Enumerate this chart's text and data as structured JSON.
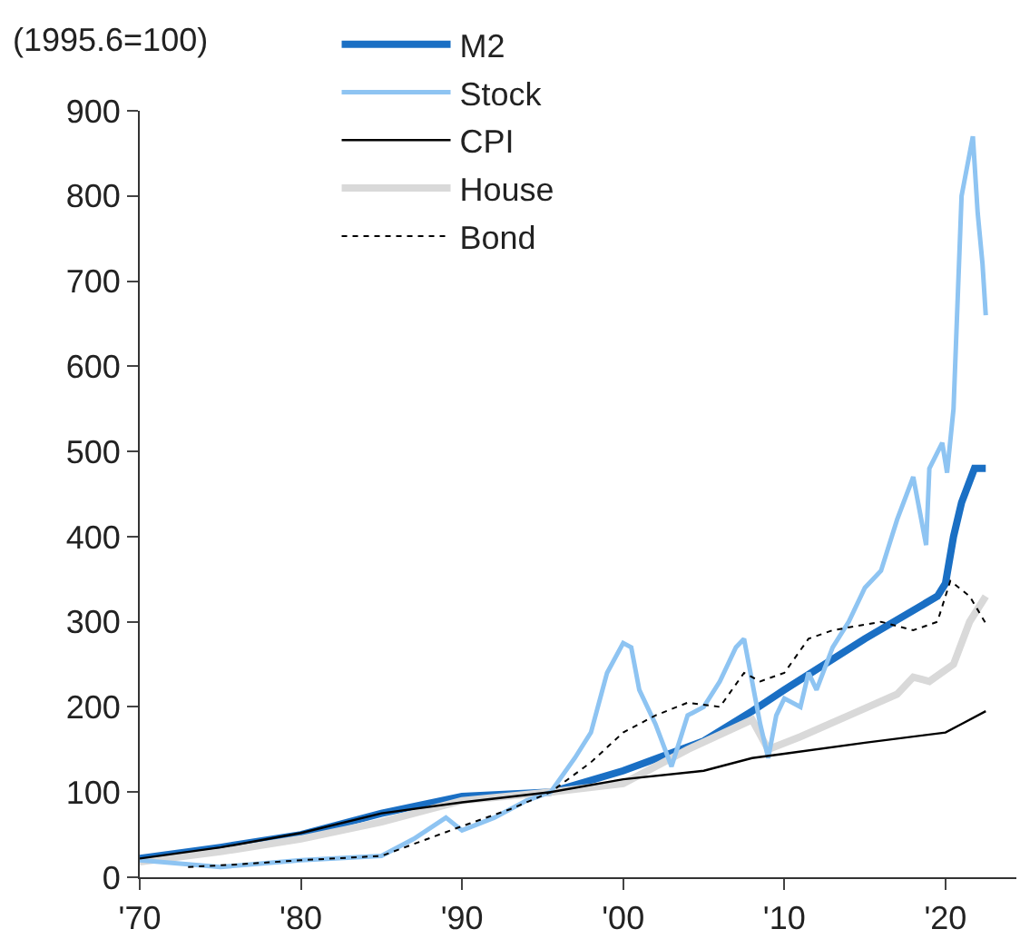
{
  "chart_data": {
    "type": "line",
    "ylabel": "(1995.6=100)",
    "xlim": [
      1970,
      2024.4
    ],
    "xticks": [
      {
        "value": 1970,
        "label": "'70"
      },
      {
        "value": 1980,
        "label": "'80"
      },
      {
        "value": 1990,
        "label": "'90"
      },
      {
        "value": 2000,
        "label": "'00"
      },
      {
        "value": 2010,
        "label": "'10"
      },
      {
        "value": 2020,
        "label": "'20"
      }
    ],
    "ylim": [
      0,
      900
    ],
    "yticks": [
      0,
      100,
      200,
      300,
      400,
      500,
      600,
      700,
      800,
      900
    ],
    "legend": "top left",
    "series": [
      {
        "name": "M2",
        "color": "#1a6fc4",
        "x": [
          1970,
          1975,
          1980,
          1985,
          1990,
          1995.5,
          2000,
          2005,
          2008,
          2010,
          2015,
          2019.5,
          2020,
          2020.5,
          2021,
          2021.8,
          2022.5
        ],
        "values": [
          22,
          35,
          50,
          75,
          95,
          100,
          125,
          160,
          195,
          220,
          280,
          330,
          345,
          400,
          440,
          480,
          480
        ]
      },
      {
        "name": "Stock",
        "color": "#8ec4f2",
        "x": [
          1970,
          1975,
          1980,
          1985,
          1987,
          1989,
          1990,
          1992,
          1994,
          1995.5,
          1997,
          1998,
          1999,
          2000,
          2000.5,
          2001,
          2002,
          2003,
          2003.5,
          2004,
          2005,
          2006,
          2007,
          2007.5,
          2008,
          2008.5,
          2009,
          2009.5,
          2010,
          2011,
          2011.5,
          2012,
          2013,
          2014,
          2015,
          2016,
          2017,
          2018,
          2018.8,
          2019,
          2019.8,
          2020.1,
          2020.5,
          2021,
          2021.7,
          2022,
          2022.3,
          2022.5
        ],
        "values": [
          20,
          12,
          20,
          25,
          45,
          70,
          55,
          70,
          90,
          100,
          140,
          170,
          240,
          275,
          270,
          220,
          180,
          130,
          160,
          190,
          200,
          230,
          270,
          280,
          230,
          180,
          140,
          190,
          210,
          200,
          240,
          220,
          270,
          300,
          340,
          360,
          420,
          470,
          390,
          480,
          510,
          475,
          550,
          800,
          870,
          780,
          720,
          660
        ]
      },
      {
        "name": "CPI",
        "color": "#000000",
        "x": [
          1970,
          1975,
          1980,
          1985,
          1990,
          1995.5,
          2000,
          2005,
          2008,
          2010,
          2015,
          2020,
          2021,
          2022.5
        ],
        "values": [
          22,
          35,
          52,
          75,
          88,
          100,
          115,
          125,
          140,
          145,
          158,
          170,
          180,
          195
        ]
      },
      {
        "name": "House",
        "color": "#d9d9d9",
        "x": [
          1970,
          1975,
          1980,
          1985,
          1990,
          1995.5,
          2000,
          2004,
          2008,
          2009,
          2011,
          2014,
          2017,
          2018,
          2019,
          2020.5,
          2021.5,
          2022.5
        ],
        "values": [
          18,
          30,
          45,
          65,
          90,
          100,
          110,
          150,
          185,
          150,
          165,
          190,
          215,
          235,
          230,
          250,
          300,
          330
        ]
      },
      {
        "name": "Bond",
        "color": "#000000",
        "line_style": "dotted",
        "x": [
          1973,
          1976,
          1980,
          1985,
          1990,
          1993,
          1995.5,
          1998,
          2000,
          2002,
          2004,
          2006,
          2007.5,
          2008.5,
          2010,
          2011.5,
          2013,
          2016,
          2018,
          2019.5,
          2020.3,
          2021.5,
          2022.5
        ],
        "values": [
          12,
          15,
          20,
          25,
          60,
          80,
          100,
          135,
          170,
          190,
          205,
          200,
          240,
          230,
          240,
          280,
          290,
          300,
          290,
          300,
          348,
          330,
          298
        ]
      }
    ]
  }
}
